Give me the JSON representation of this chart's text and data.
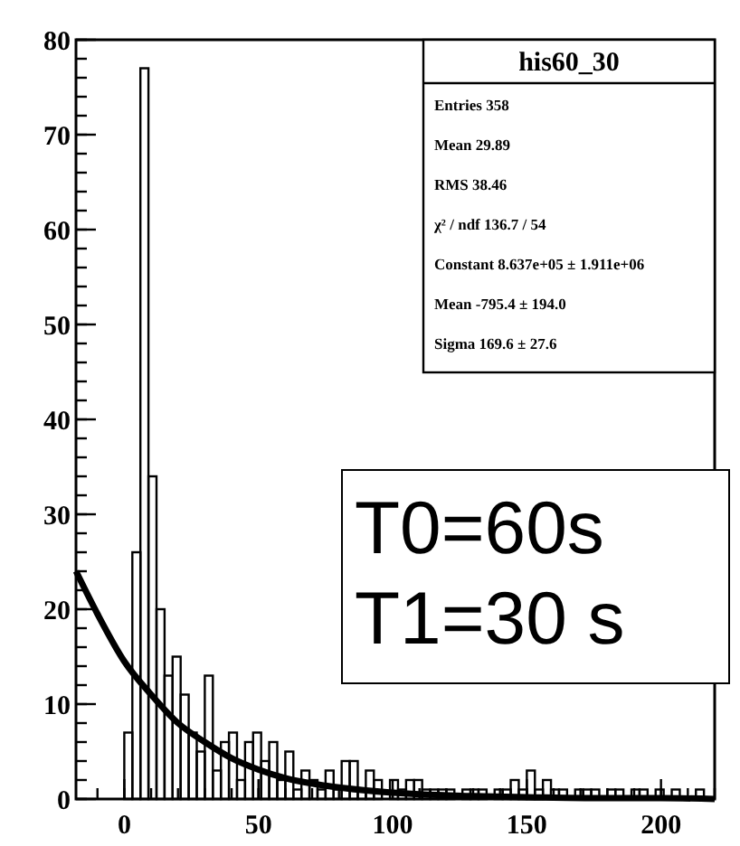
{
  "chart_data": {
    "type": "histogram",
    "title": "his60_30",
    "bins": [
      -18,
      -15,
      -12,
      -9,
      -6,
      -3,
      0,
      3,
      6,
      9,
      12,
      15,
      18,
      21,
      24,
      27,
      30,
      33,
      36,
      39,
      42,
      45,
      48,
      51,
      54,
      57,
      60,
      63,
      66,
      69,
      72,
      75,
      78,
      81,
      84,
      87,
      90,
      93,
      96,
      99,
      102,
      105,
      108,
      111,
      114,
      117,
      120,
      123,
      126,
      129,
      132,
      135,
      138,
      141,
      144,
      147,
      150,
      153,
      156,
      159,
      162,
      165,
      168,
      171,
      174,
      177,
      180,
      183,
      186,
      189,
      192,
      195,
      198,
      201,
      204,
      207,
      210,
      213,
      216,
      219
    ],
    "values": [
      0,
      0,
      0,
      0,
      0,
      0,
      7,
      26,
      77,
      34,
      20,
      13,
      15,
      11,
      7,
      5,
      13,
      3,
      6,
      7,
      2,
      6,
      7,
      4,
      6,
      2,
      5,
      1,
      3,
      2,
      1,
      3,
      1,
      4,
      4,
      1,
      3,
      2,
      0,
      2,
      1,
      2,
      2,
      1,
      1,
      1,
      1,
      0,
      1,
      1,
      1,
      0,
      1,
      1,
      2,
      1,
      3,
      1,
      2,
      1,
      1,
      0,
      1,
      1,
      1,
      0,
      1,
      1,
      0,
      1,
      1,
      0,
      1,
      0,
      1,
      0,
      0,
      1,
      0
    ],
    "color": "#000000",
    "series": [
      {
        "type": "line",
        "color": "#000000",
        "x": [
          -18,
          -10,
          0,
          10,
          20,
          30,
          40,
          50,
          60,
          75,
          90,
          110,
          130,
          150,
          175,
          200,
          220
        ],
        "values": [
          24,
          19.5,
          14.5,
          11,
          8,
          6,
          4.3,
          3.1,
          2.2,
          1.4,
          0.9,
          0.5,
          0.3,
          0.2,
          0.1,
          0.1,
          0
        ]
      }
    ],
    "xlim": [
      -18,
      220
    ],
    "xticks": [
      0,
      50,
      100,
      150,
      200
    ],
    "ylim": [
      0,
      80
    ],
    "yticks": [
      0,
      10,
      20,
      30,
      40,
      50,
      60,
      70,
      80
    ],
    "grid": false,
    "annotations": [
      "Entries 358",
      "Mean 29.89",
      "RMS 38.46",
      "χ² / ndf 136.7 / 54",
      "Constant 8.637e+05 ± 1.911e+06",
      "Mean -795.4 ± 194.0",
      "Sigma 169.6 ± 27.6",
      "T0=60s",
      "T1=30 s"
    ]
  }
}
